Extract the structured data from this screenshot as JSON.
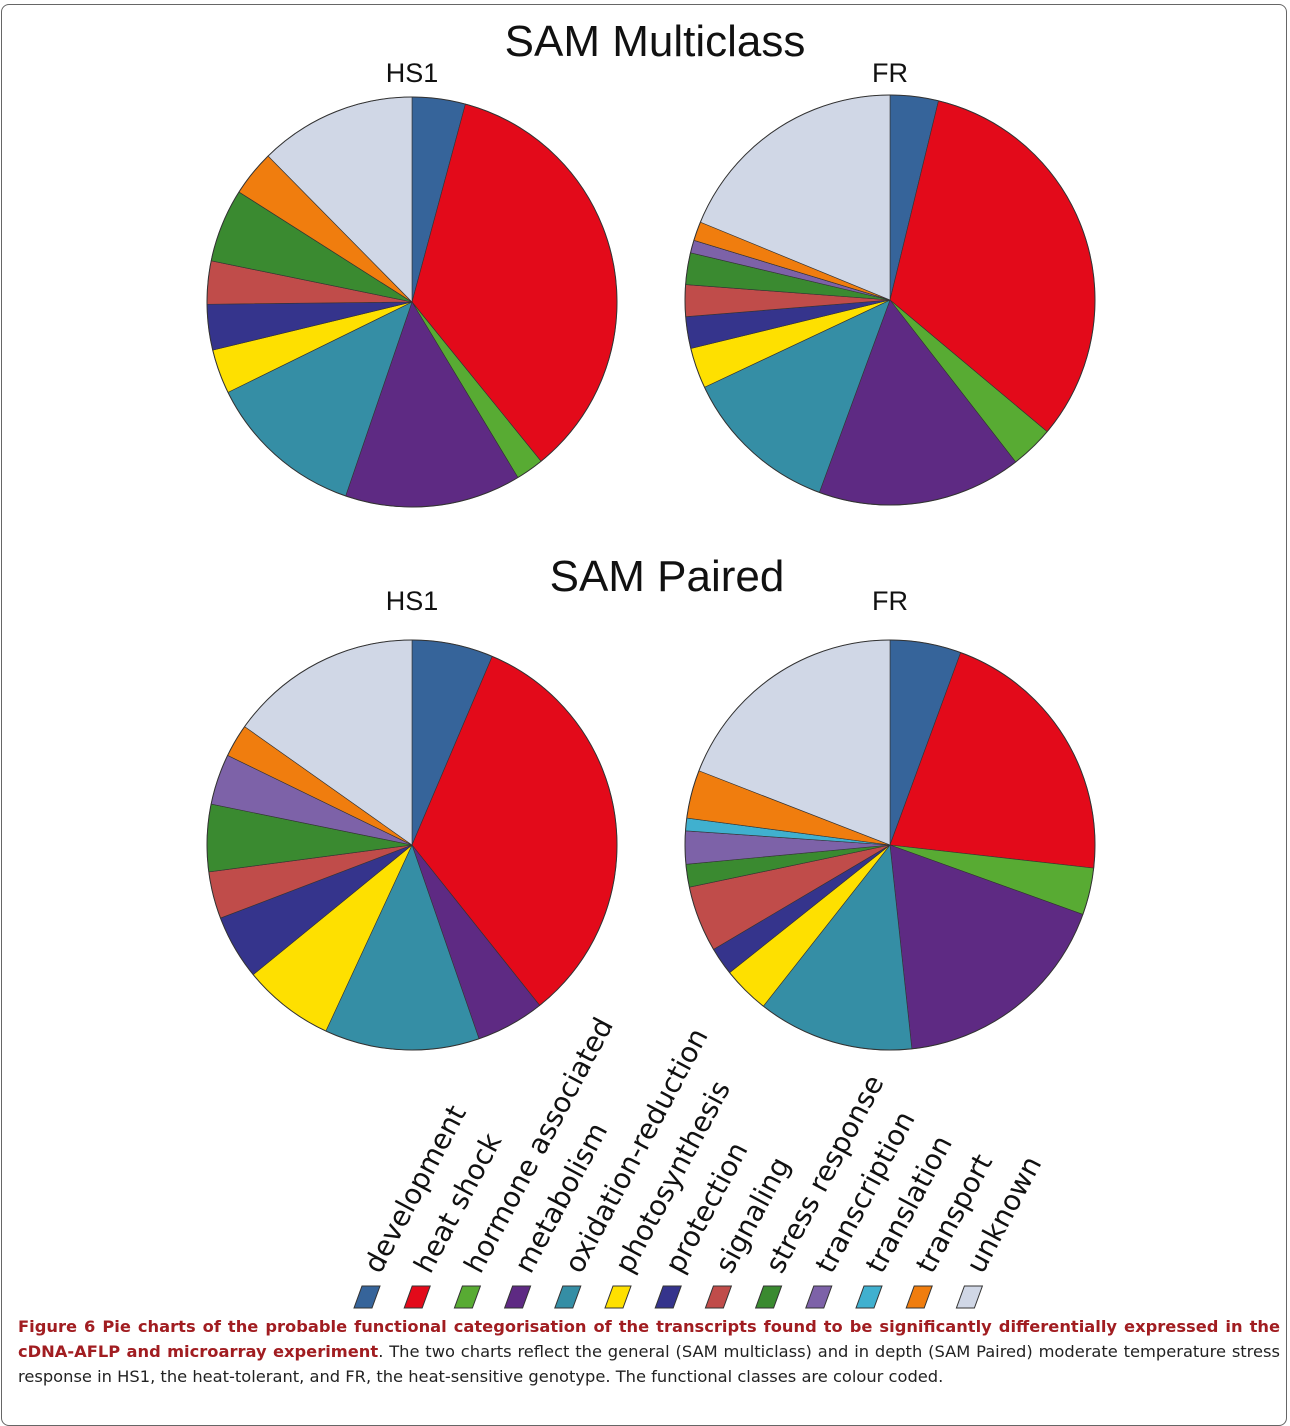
{
  "headings": [
    "SAM Multiclass",
    "SAM Paired"
  ],
  "legend": {
    "categories": [
      "development",
      "heat shock",
      "hormone associated",
      "metabolism",
      "oxidation-reduction",
      "photosynthesis",
      "protection",
      "signaling",
      "stress response",
      "transcription",
      "translation",
      "transport",
      "unknown"
    ],
    "colors": [
      "#36649a",
      "#e30a1a",
      "#58ab33",
      "#5e2a83",
      "#358ea5",
      "#fee000",
      "#35348c",
      "#c04c4a",
      "#3a8a30",
      "#7d62a8",
      "#40b0cf",
      "#f07d0e",
      "#d0d7e6"
    ]
  },
  "chart_data": [
    {
      "type": "pie",
      "title": "HS1",
      "values": [
        4.2,
        35,
        2.2,
        13.9,
        12.5,
        3.5,
        3.6,
        3.4,
        5.8,
        0,
        0,
        3.6,
        12.4
      ]
    },
    {
      "type": "pie",
      "title": "FR",
      "values": [
        3.8,
        32.3,
        3.4,
        16.1,
        12.4,
        3.2,
        2.5,
        2.5,
        2.5,
        1,
        0,
        1.5,
        18.8
      ]
    },
    {
      "type": "pie",
      "title": "HS1",
      "values": [
        6.4,
        32.9,
        0,
        5.4,
        12.2,
        7.2,
        5.1,
        3.7,
        5.3,
        4,
        0,
        2.6,
        15.2
      ]
    },
    {
      "type": "pie",
      "title": "FR",
      "values": [
        5.6,
        21.2,
        3.7,
        17.8,
        12.3,
        3.7,
        2.2,
        5.2,
        1.8,
        2.6,
        1,
        3.8,
        19.1
      ]
    }
  ],
  "caption": {
    "bold": "Figure 6 Pie charts of the probable functional categorisation of the transcripts found to be significantly differentially expressed in the cDNA-AFLP and microarray experiment",
    "text": ". The two charts reflect the general (SAM multiclass) and in depth (SAM Paired) moderate temperature stress response in HS1, the heat-tolerant, and FR, the heat-sensitive genotype. The functional classes are colour coded."
  }
}
